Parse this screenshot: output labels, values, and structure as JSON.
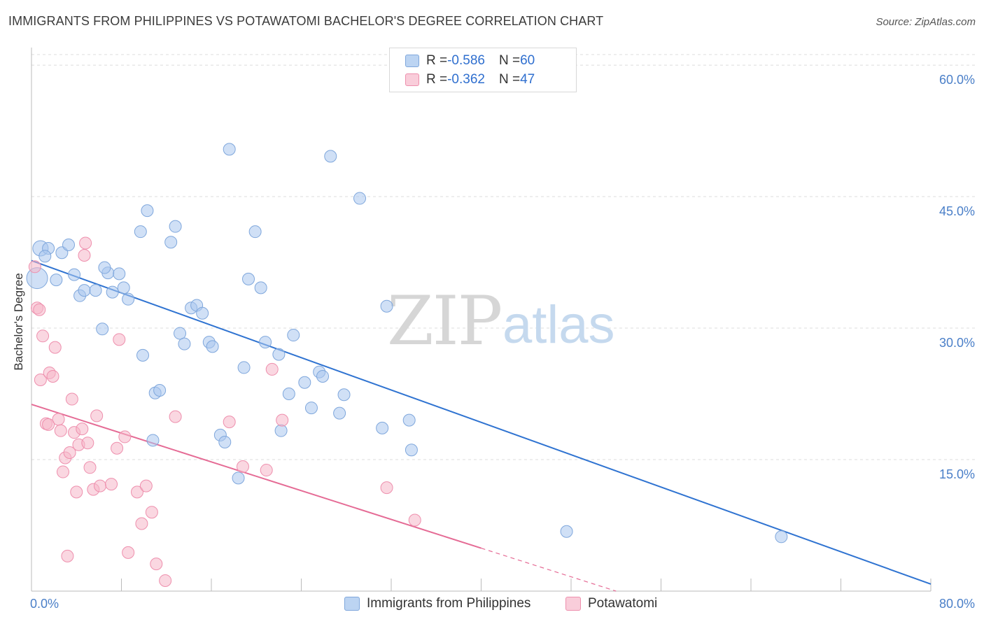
{
  "title": "IMMIGRANTS FROM PHILIPPINES VS POTAWATOMI BACHELOR'S DEGREE CORRELATION CHART",
  "source": "Source: ZipAtlas.com",
  "watermark": {
    "zip": "ZIP",
    "atlas": "atlas"
  },
  "legend": {
    "rows": [
      {
        "r_label": "R = ",
        "r_value": "-0.586",
        "n_label": "N = ",
        "n_value": "60"
      },
      {
        "r_label": "R = ",
        "r_value": "-0.362",
        "n_label": "N = ",
        "n_value": "47"
      }
    ]
  },
  "chart_data": {
    "type": "scatter",
    "title": "IMMIGRANTS FROM PHILIPPINES VS POTAWATOMI BACHELOR'S DEGREE CORRELATION CHART",
    "xlabel": "",
    "ylabel": "Bachelor's Degree",
    "xlim": [
      0,
      80
    ],
    "ylim": [
      0,
      62
    ],
    "x_tick_labels": [
      "0.0%",
      "80.0%"
    ],
    "y_ticks": [
      15,
      30,
      45,
      60
    ],
    "y_tick_labels": [
      "15.0%",
      "30.0%",
      "45.0%",
      "60.0%"
    ],
    "grid": true,
    "legend_position": "top-center",
    "series": [
      {
        "name": "Immigrants from Philippines",
        "color": "#a9c7ee",
        "edge": "#7fa7dc",
        "line_color": "#2f73d1",
        "r": -0.586,
        "n": 60,
        "trend": {
          "x": [
            0,
            80
          ],
          "y": [
            37.7,
            0.8
          ]
        },
        "points": [
          [
            0.5,
            35.7
          ],
          [
            0.8,
            39.1
          ],
          [
            1.5,
            39.1
          ],
          [
            1.2,
            38.2
          ],
          [
            2.2,
            35.5
          ],
          [
            2.7,
            38.6
          ],
          [
            3.3,
            39.5
          ],
          [
            3.8,
            36.1
          ],
          [
            4.3,
            33.7
          ],
          [
            4.7,
            34.3
          ],
          [
            5.7,
            34.3
          ],
          [
            6.8,
            36.3
          ],
          [
            6.5,
            36.9
          ],
          [
            7.2,
            34.1
          ],
          [
            7.8,
            36.2
          ],
          [
            8.2,
            34.6
          ],
          [
            8.6,
            33.3
          ],
          [
            6.3,
            29.9
          ],
          [
            9.7,
            41.0
          ],
          [
            10.3,
            43.4
          ],
          [
            9.9,
            26.9
          ],
          [
            11.0,
            22.6
          ],
          [
            11.4,
            22.9
          ],
          [
            10.8,
            17.2
          ],
          [
            12.4,
            39.8
          ],
          [
            12.8,
            41.6
          ],
          [
            13.2,
            29.4
          ],
          [
            13.6,
            28.2
          ],
          [
            14.2,
            32.3
          ],
          [
            14.7,
            32.6
          ],
          [
            15.2,
            31.7
          ],
          [
            15.8,
            28.4
          ],
          [
            16.1,
            27.9
          ],
          [
            16.8,
            17.8
          ],
          [
            17.2,
            17.0
          ],
          [
            17.6,
            50.4
          ],
          [
            18.4,
            12.9
          ],
          [
            18.9,
            25.5
          ],
          [
            19.3,
            35.6
          ],
          [
            19.9,
            41.0
          ],
          [
            20.4,
            34.6
          ],
          [
            20.8,
            28.4
          ],
          [
            22.0,
            27.0
          ],
          [
            22.2,
            18.3
          ],
          [
            22.9,
            22.5
          ],
          [
            23.3,
            29.2
          ],
          [
            24.3,
            23.8
          ],
          [
            24.9,
            20.9
          ],
          [
            25.6,
            25.0
          ],
          [
            25.9,
            24.5
          ],
          [
            26.6,
            49.6
          ],
          [
            27.4,
            20.3
          ],
          [
            27.8,
            22.4
          ],
          [
            29.2,
            44.8
          ],
          [
            31.2,
            18.6
          ],
          [
            31.6,
            32.5
          ],
          [
            33.6,
            19.5
          ],
          [
            33.8,
            16.1
          ],
          [
            47.6,
            6.8
          ],
          [
            66.7,
            6.2
          ]
        ]
      },
      {
        "name": "Potawatomi",
        "color": "#f6b6c9",
        "edge": "#ee8fad",
        "line_color": "#e56b95",
        "r": -0.362,
        "n": 47,
        "trend": {
          "x": [
            0,
            40
          ],
          "y": [
            21.3,
            4.9
          ]
        },
        "trend_dashed": {
          "x": [
            40,
            52
          ],
          "y": [
            4.9,
            0
          ]
        },
        "points": [
          [
            0.3,
            37.0
          ],
          [
            0.5,
            32.3
          ],
          [
            0.7,
            32.1
          ],
          [
            0.8,
            24.1
          ],
          [
            1.0,
            29.1
          ],
          [
            1.3,
            19.1
          ],
          [
            1.5,
            19.0
          ],
          [
            1.6,
            24.9
          ],
          [
            1.9,
            24.5
          ],
          [
            2.1,
            27.8
          ],
          [
            2.4,
            19.6
          ],
          [
            2.6,
            18.3
          ],
          [
            2.8,
            13.6
          ],
          [
            3.0,
            15.2
          ],
          [
            3.2,
            4.0
          ],
          [
            3.4,
            15.8
          ],
          [
            3.6,
            21.9
          ],
          [
            3.8,
            18.1
          ],
          [
            4.0,
            11.3
          ],
          [
            4.2,
            16.7
          ],
          [
            4.5,
            18.5
          ],
          [
            4.7,
            38.3
          ],
          [
            4.8,
            39.7
          ],
          [
            5.0,
            16.9
          ],
          [
            5.2,
            14.1
          ],
          [
            5.5,
            11.6
          ],
          [
            5.8,
            20.0
          ],
          [
            6.1,
            12.0
          ],
          [
            7.1,
            12.2
          ],
          [
            7.6,
            16.3
          ],
          [
            7.8,
            28.7
          ],
          [
            8.3,
            17.6
          ],
          [
            8.6,
            4.4
          ],
          [
            9.4,
            11.3
          ],
          [
            9.8,
            7.7
          ],
          [
            10.2,
            12.0
          ],
          [
            10.7,
            9.0
          ],
          [
            11.1,
            3.1
          ],
          [
            11.9,
            1.2
          ],
          [
            12.8,
            19.9
          ],
          [
            17.6,
            19.3
          ],
          [
            18.8,
            14.2
          ],
          [
            20.9,
            13.8
          ],
          [
            21.4,
            25.3
          ],
          [
            22.3,
            19.5
          ],
          [
            31.6,
            11.8
          ],
          [
            34.1,
            8.1
          ]
        ]
      }
    ]
  }
}
